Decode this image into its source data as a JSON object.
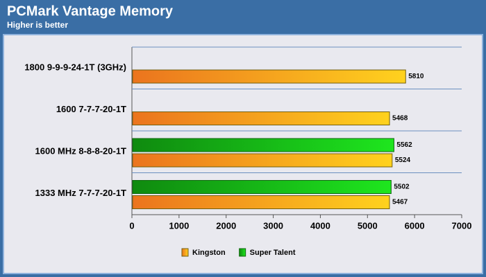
{
  "chart_data": {
    "type": "hbar",
    "title": "PCMark Vantage Memory",
    "subtitle": "Higher is better",
    "categories": [
      "1800 9-9-9-24-1T (3GHz)",
      "1600 7-7-7-20-1T",
      "1600 MHz 8-8-8-20-1T",
      "1333 MHz 7-7-7-20-1T"
    ],
    "series": [
      {
        "name": "Kingston",
        "color": "#ffd21e",
        "values": [
          5810,
          5468,
          5524,
          5467
        ]
      },
      {
        "name": "Super Talent",
        "color": "#1ee61e",
        "values": [
          null,
          null,
          5562,
          5502
        ]
      }
    ],
    "xlim": [
      0,
      7000
    ],
    "xticks": [
      0,
      1000,
      2000,
      3000,
      4000,
      5000,
      6000,
      7000
    ],
    "grid": true
  }
}
